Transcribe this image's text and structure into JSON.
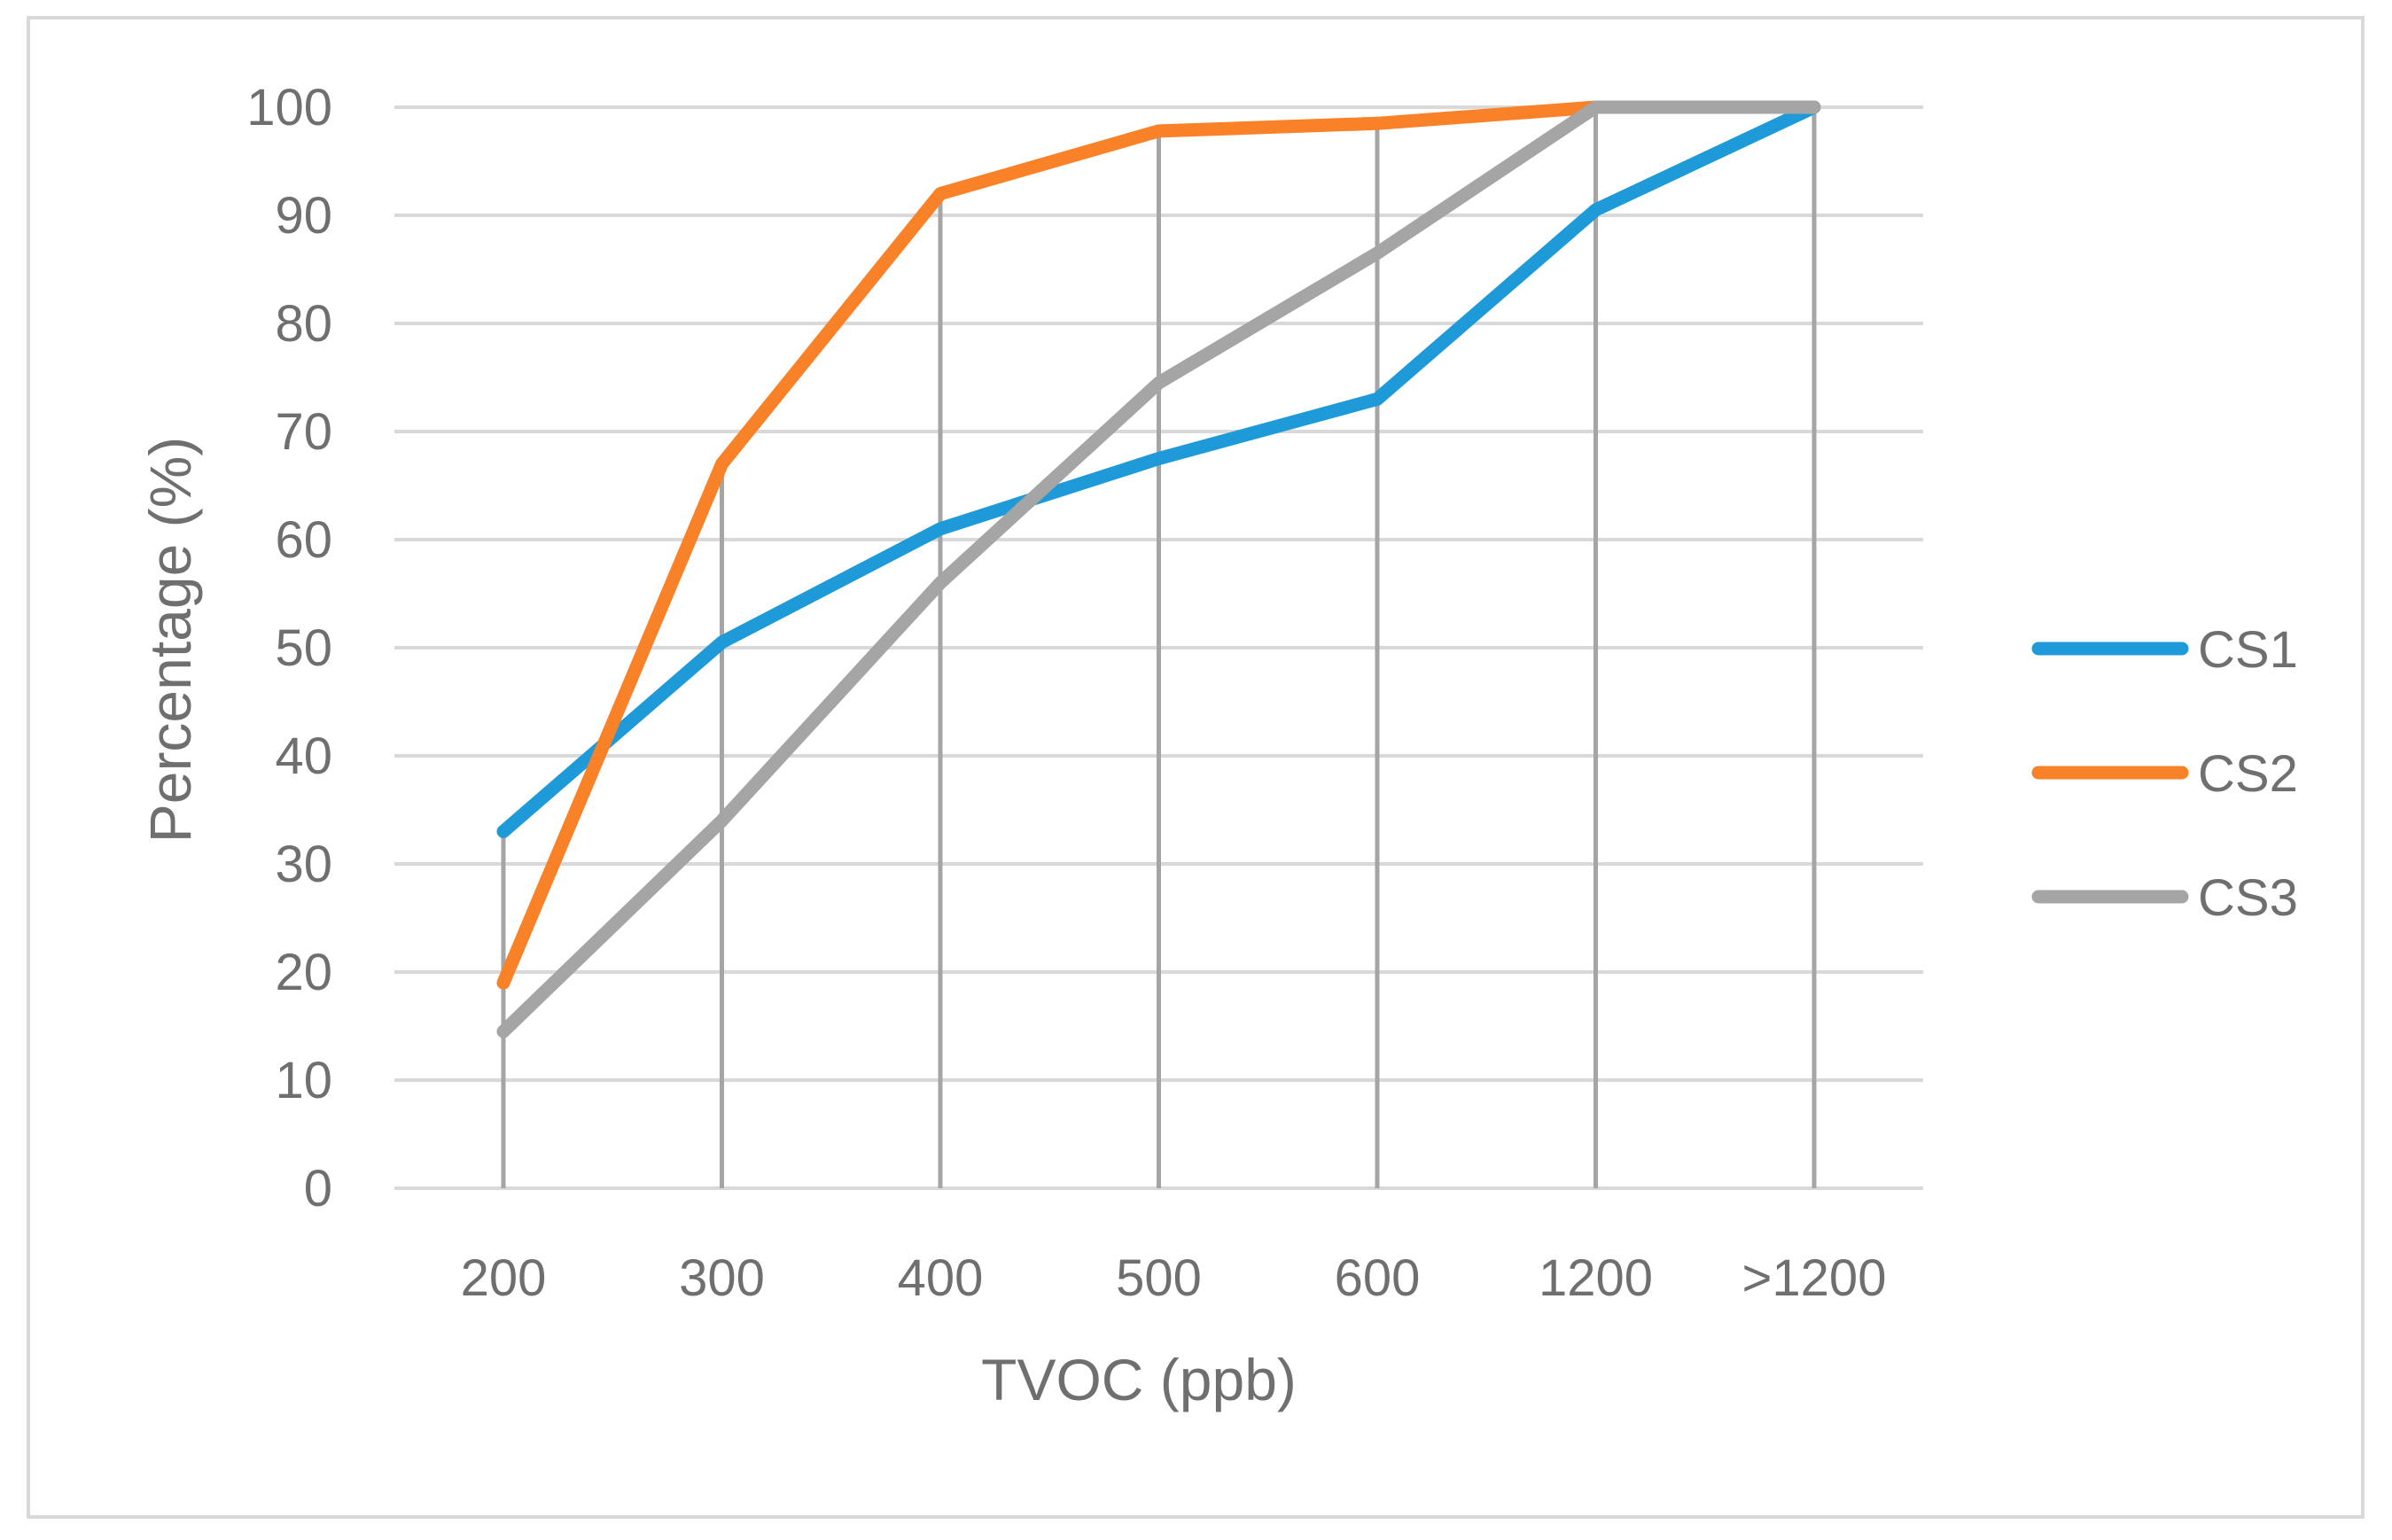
{
  "chart_data": {
    "type": "line",
    "title": "",
    "xlabel": "TVOC (ppb)",
    "ylabel": "Percentage (%)",
    "categories": [
      "200",
      "300",
      "400",
      "500",
      "600",
      "1200",
      ">1200"
    ],
    "ylim": [
      0,
      100
    ],
    "yticks": [
      "0",
      "10",
      "20",
      "30",
      "40",
      "50",
      "60",
      "70",
      "80",
      "90",
      "100"
    ],
    "grid": "horizontal and vertical",
    "legend_position": "right",
    "series": [
      {
        "name": "CS1",
        "color": "#1f9ad9",
        "values": [
          33,
          50.5,
          61,
          67.5,
          73,
          90.5,
          100
        ]
      },
      {
        "name": "CS2",
        "color": "#f98127",
        "values": [
          19,
          67,
          92,
          97.8,
          98.5,
          100,
          100
        ]
      },
      {
        "name": "CS3",
        "color": "#a5a5a5",
        "values": [
          14.5,
          34,
          56,
          74.5,
          86.5,
          100,
          100
        ]
      }
    ]
  }
}
